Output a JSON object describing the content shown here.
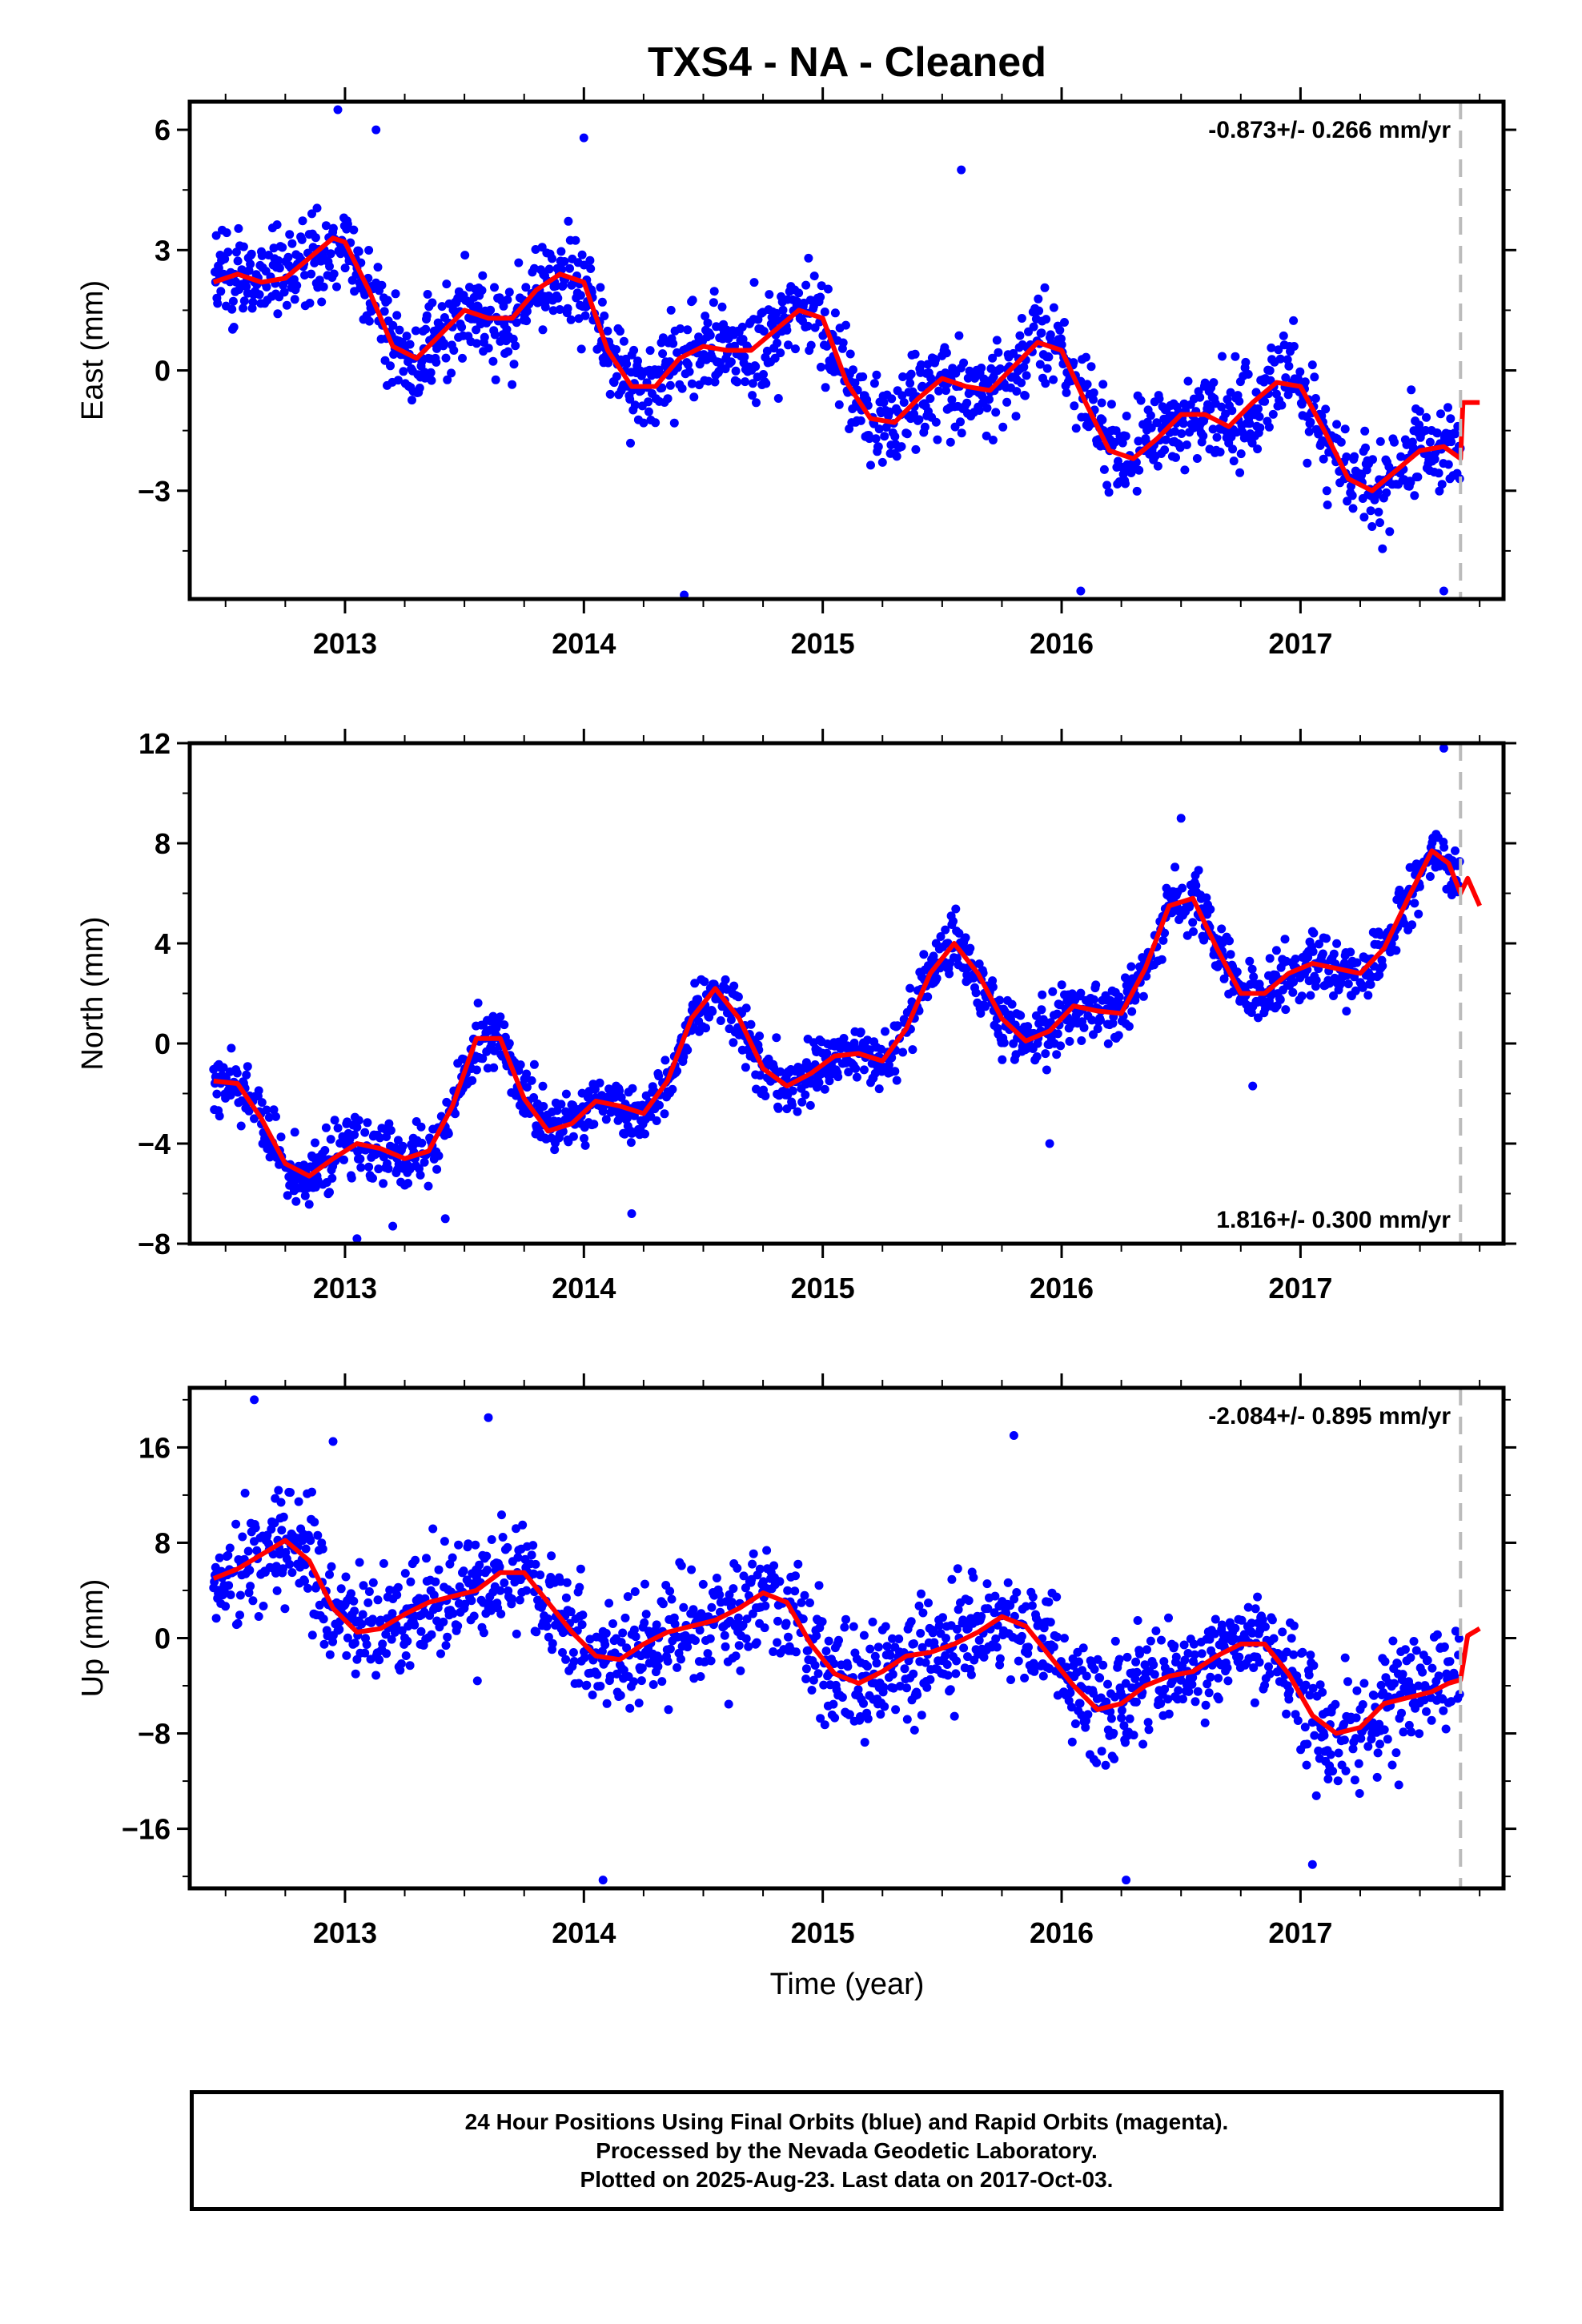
{
  "chart_data": {
    "title": "TXS4  - NA - Cleaned",
    "xlabel": "Time (year)",
    "footer": [
      "24 Hour Positions Using Final Orbits (blue) and Rapid Orbits (magenta).",
      "Processed by the Nevada Geodetic Laboratory.",
      "Plotted on 2025-Aug-23. Last data on 2017-Oct-03."
    ],
    "colors": {
      "points": "#0000ff",
      "model": "#ff0000",
      "last_data_line": "#bbbbbb"
    },
    "x_tick_labels": [
      "2013",
      "2014",
      "2015",
      "2016",
      "2017"
    ],
    "panels": [
      {
        "type": "scatter",
        "ylabel": "East (mm)",
        "ylim": [
          -5.7,
          6.7
        ],
        "yticks": [
          6,
          3,
          0,
          -3
        ],
        "ytick_labels": [
          "6",
          "3",
          "0",
          "−3"
        ],
        "xlim": [
          2012.35,
          2017.85
        ],
        "rate": "-0.873+/- 0.266 mm/yr",
        "rate_position": "top-right",
        "last_data": 2017.67,
        "model": {
          "x": [
            2012.45,
            2012.55,
            2012.65,
            2012.75,
            2012.85,
            2012.95,
            2013.0,
            2013.1,
            2013.2,
            2013.3,
            2013.4,
            2013.5,
            2013.6,
            2013.7,
            2013.8,
            2013.9,
            2014.0,
            2014.1,
            2014.2,
            2014.3,
            2014.4,
            2014.5,
            2014.6,
            2014.7,
            2014.8,
            2014.9,
            2015.0,
            2015.1,
            2015.2,
            2015.3,
            2015.4,
            2015.5,
            2015.6,
            2015.7,
            2015.8,
            2015.9,
            2016.0,
            2016.1,
            2016.2,
            2016.3,
            2016.4,
            2016.5,
            2016.6,
            2016.7,
            2016.8,
            2016.9,
            2017.0,
            2017.1,
            2017.2,
            2017.3,
            2017.4,
            2017.5,
            2017.6,
            2017.67,
            2017.68,
            2017.75
          ],
          "y": [
            2.2,
            2.4,
            2.2,
            2.3,
            2.8,
            3.3,
            3.2,
            2.0,
            0.6,
            0.3,
            0.9,
            1.5,
            1.3,
            1.3,
            2.0,
            2.4,
            2.2,
            0.5,
            -0.4,
            -0.4,
            0.3,
            0.6,
            0.5,
            0.5,
            1.0,
            1.5,
            1.3,
            -0.3,
            -1.2,
            -1.3,
            -0.7,
            -0.2,
            -0.4,
            -0.5,
            0.1,
            0.7,
            0.5,
            -0.8,
            -2.0,
            -2.2,
            -1.7,
            -1.1,
            -1.1,
            -1.4,
            -0.8,
            -0.3,
            -0.4,
            -1.5,
            -2.7,
            -3.0,
            -2.5,
            -2.0,
            -1.9,
            -2.2,
            -0.8,
            -0.8
          ]
        },
        "points": {
          "noise": 1.05,
          "outliers": [
            [
              2012.97,
              6.5
            ],
            [
              2013.13,
              6.0
            ],
            [
              2014.42,
              -5.6
            ],
            [
              2015.58,
              5.0
            ],
            [
              2016.08,
              -5.5
            ],
            [
              2017.6,
              -5.5
            ],
            [
              2014.0,
              5.8
            ]
          ]
        }
      },
      {
        "type": "scatter",
        "ylabel": "North (mm)",
        "ylim": [
          -8.0,
          12.0
        ],
        "yticks": [
          12,
          8,
          4,
          0,
          -4,
          -8
        ],
        "ytick_labels": [
          "12",
          "8",
          "4",
          "0",
          "−4",
          "−8"
        ],
        "xlim": [
          2012.35,
          2017.85
        ],
        "rate": "1.816+/- 0.300 mm/yr",
        "rate_position": "bottom-right",
        "last_data": 2017.67,
        "model": {
          "x": [
            2012.45,
            2012.55,
            2012.65,
            2012.75,
            2012.85,
            2012.95,
            2013.05,
            2013.15,
            2013.25,
            2013.35,
            2013.45,
            2013.55,
            2013.65,
            2013.75,
            2013.85,
            2013.95,
            2014.05,
            2014.15,
            2014.25,
            2014.35,
            2014.45,
            2014.55,
            2014.65,
            2014.75,
            2014.85,
            2014.95,
            2015.05,
            2015.15,
            2015.25,
            2015.35,
            2015.45,
            2015.55,
            2015.65,
            2015.75,
            2015.85,
            2015.95,
            2016.05,
            2016.15,
            2016.25,
            2016.35,
            2016.45,
            2016.55,
            2016.65,
            2016.75,
            2016.85,
            2016.95,
            2017.05,
            2017.15,
            2017.25,
            2017.35,
            2017.45,
            2017.55,
            2017.62,
            2017.67,
            2017.7,
            2017.75
          ],
          "y": [
            -1.5,
            -1.6,
            -3.0,
            -4.8,
            -5.3,
            -4.6,
            -4.0,
            -4.2,
            -4.6,
            -4.3,
            -2.5,
            0.2,
            0.2,
            -2.2,
            -3.5,
            -3.2,
            -2.3,
            -2.5,
            -2.8,
            -1.5,
            1.0,
            2.2,
            1.0,
            -1.0,
            -1.7,
            -1.2,
            -0.5,
            -0.4,
            -0.7,
            0.6,
            2.8,
            4.0,
            2.8,
            1.0,
            0.1,
            0.5,
            1.5,
            1.3,
            1.2,
            3.0,
            5.5,
            5.8,
            3.8,
            2.0,
            2.0,
            2.8,
            3.2,
            3.0,
            2.8,
            3.8,
            5.8,
            7.7,
            7.2,
            6.0,
            6.6,
            5.5
          ]
        },
        "points": {
          "noise": 1.05,
          "outliers": [
            [
              2013.05,
              -7.8
            ],
            [
              2013.2,
              -7.3
            ],
            [
              2013.42,
              -7.0
            ],
            [
              2014.2,
              -6.8
            ],
            [
              2017.6,
              11.8
            ],
            [
              2016.5,
              9.0
            ],
            [
              2015.95,
              -4.0
            ],
            [
              2016.8,
              -1.7
            ]
          ]
        }
      },
      {
        "type": "scatter",
        "ylabel": "Up (mm)",
        "ylim": [
          -21.0,
          21.0
        ],
        "yticks": [
          16,
          8,
          0,
          -8,
          -16
        ],
        "ytick_labels": [
          "16",
          "8",
          "0",
          "−8",
          "−16"
        ],
        "xlim": [
          2012.35,
          2017.85
        ],
        "rate": "-2.084+/- 0.895 mm/yr",
        "rate_position": "top-right",
        "last_data": 2017.67,
        "model": {
          "x": [
            2012.45,
            2012.55,
            2012.65,
            2012.75,
            2012.85,
            2012.95,
            2013.05,
            2013.15,
            2013.25,
            2013.35,
            2013.45,
            2013.55,
            2013.65,
            2013.75,
            2013.85,
            2013.95,
            2014.05,
            2014.15,
            2014.25,
            2014.35,
            2014.45,
            2014.55,
            2014.65,
            2014.75,
            2014.85,
            2014.95,
            2015.05,
            2015.15,
            2015.25,
            2015.35,
            2015.45,
            2015.55,
            2015.65,
            2015.75,
            2015.85,
            2015.95,
            2016.05,
            2016.15,
            2016.25,
            2016.35,
            2016.45,
            2016.55,
            2016.65,
            2016.75,
            2016.85,
            2016.95,
            2017.05,
            2017.15,
            2017.25,
            2017.35,
            2017.45,
            2017.55,
            2017.62,
            2017.67,
            2017.7,
            2017.75
          ],
          "y": [
            5.0,
            5.8,
            7.0,
            8.2,
            6.5,
            2.5,
            0.5,
            0.8,
            2.0,
            3.0,
            3.5,
            4.0,
            5.5,
            5.5,
            3.0,
            0.5,
            -1.5,
            -1.8,
            -0.5,
            0.5,
            1.0,
            1.5,
            2.5,
            3.8,
            3.0,
            -0.5,
            -3.0,
            -3.8,
            -2.8,
            -1.5,
            -1.2,
            -0.5,
            0.5,
            1.8,
            1.0,
            -1.5,
            -4.0,
            -6.0,
            -5.5,
            -4.0,
            -3.2,
            -2.8,
            -1.5,
            -0.5,
            -0.5,
            -3.0,
            -6.5,
            -8.0,
            -7.5,
            -5.5,
            -5.0,
            -4.5,
            -3.8,
            -3.5,
            0.2,
            0.8
          ]
        },
        "points": {
          "noise": 4.2,
          "outliers": [
            [
              2012.62,
              20.0
            ],
            [
              2013.6,
              18.5
            ],
            [
              2014.08,
              -20.3
            ],
            [
              2016.27,
              -20.3
            ],
            [
              2017.05,
              -19.0
            ],
            [
              2015.8,
              17.0
            ],
            [
              2012.95,
              16.5
            ]
          ]
        }
      }
    ]
  }
}
